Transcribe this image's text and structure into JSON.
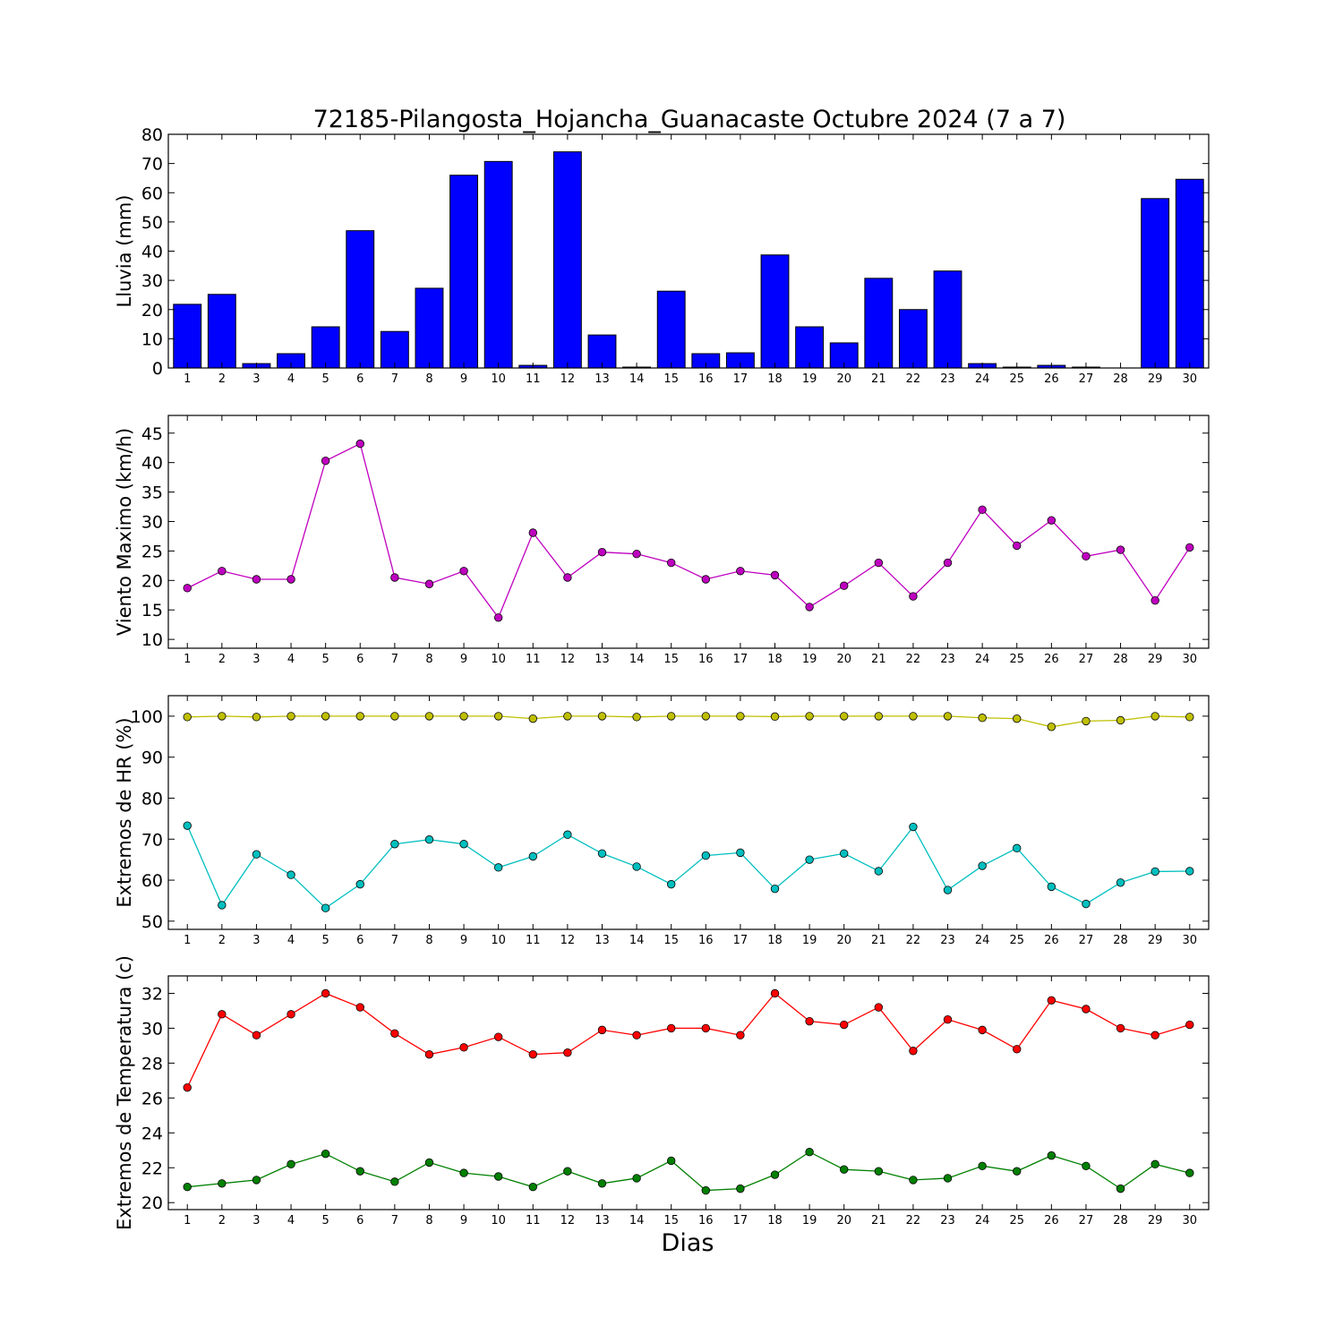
{
  "figure": {
    "title": "72185-Pilangosta_Hojancha_Guanacaste Octubre 2024  (7 a 7)",
    "xlabel": "Dias"
  },
  "chart_data": [
    {
      "type": "bar",
      "ylabel": "Lluvia (mm)",
      "categories": [
        "1",
        "2",
        "3",
        "4",
        "5",
        "6",
        "7",
        "8",
        "9",
        "10",
        "11",
        "12",
        "13",
        "14",
        "15",
        "16",
        "17",
        "18",
        "19",
        "20",
        "21",
        "22",
        "23",
        "24",
        "25",
        "26",
        "27",
        "28",
        "29",
        "30"
      ],
      "ylim": [
        0,
        80
      ],
      "yticks": [
        0,
        10,
        20,
        30,
        40,
        50,
        60,
        70,
        80
      ],
      "series": [
        {
          "color": "#0000ff",
          "values": [
            21.8,
            25.2,
            1.5,
            4.9,
            14.1,
            47.0,
            12.5,
            27.3,
            66.0,
            70.7,
            0.9,
            74.0,
            11.3,
            0.3,
            26.3,
            4.9,
            5.2,
            38.7,
            14.1,
            8.6,
            30.7,
            20.0,
            33.2,
            1.5,
            0.3,
            0.9,
            0.3,
            0.0,
            58.0,
            64.6
          ]
        }
      ]
    },
    {
      "type": "line",
      "ylabel": "Viento Maximo (km/h)",
      "categories": [
        "1",
        "2",
        "3",
        "4",
        "5",
        "6",
        "7",
        "8",
        "9",
        "10",
        "11",
        "12",
        "13",
        "14",
        "15",
        "16",
        "17",
        "18",
        "19",
        "20",
        "21",
        "22",
        "23",
        "24",
        "25",
        "26",
        "27",
        "28",
        "29",
        "30"
      ],
      "ylim": [
        8.5,
        48
      ],
      "yticks": [
        10,
        15,
        20,
        25,
        30,
        35,
        40,
        45
      ],
      "series": [
        {
          "color": "#bf00bf",
          "values": [
            18.7,
            21.6,
            20.2,
            20.2,
            40.3,
            43.2,
            20.5,
            19.4,
            21.6,
            13.7,
            28.1,
            20.5,
            24.8,
            24.5,
            23.0,
            20.2,
            21.6,
            20.9,
            15.5,
            19.1,
            23.0,
            17.3,
            23.0,
            32.0,
            25.9,
            30.2,
            24.1,
            25.2,
            16.6,
            25.6
          ]
        }
      ]
    },
    {
      "type": "line",
      "ylabel": "Extremos de HR (%)",
      "categories": [
        "1",
        "2",
        "3",
        "4",
        "5",
        "6",
        "7",
        "8",
        "9",
        "10",
        "11",
        "12",
        "13",
        "14",
        "15",
        "16",
        "17",
        "18",
        "19",
        "20",
        "21",
        "22",
        "23",
        "24",
        "25",
        "26",
        "27",
        "28",
        "29",
        "30"
      ],
      "ylim": [
        48,
        105
      ],
      "yticks": [
        50,
        60,
        70,
        80,
        90,
        100
      ],
      "series": [
        {
          "color": "#bfbf00",
          "values": [
            99.8,
            100,
            99.8,
            100,
            100,
            100,
            100,
            100,
            100,
            100,
            99.4,
            100,
            100,
            99.8,
            100,
            100,
            100,
            99.9,
            100,
            100,
            100,
            100,
            100,
            99.6,
            99.4,
            97.4,
            98.8,
            99.0,
            100,
            99.8
          ]
        },
        {
          "color": "#00bfbf",
          "values": [
            73.3,
            53.9,
            66.3,
            61.3,
            53.2,
            59.0,
            68.8,
            69.9,
            68.8,
            63.1,
            65.8,
            71.1,
            66.5,
            63.3,
            59.0,
            66.0,
            66.7,
            57.9,
            65.0,
            66.5,
            62.2,
            73.0,
            57.6,
            63.5,
            67.8,
            58.4,
            54.2,
            59.4,
            62.1,
            62.2
          ]
        }
      ]
    },
    {
      "type": "line",
      "ylabel": "Extremos de Temperatura (c)",
      "categories": [
        "1",
        "2",
        "3",
        "4",
        "5",
        "6",
        "7",
        "8",
        "9",
        "10",
        "11",
        "12",
        "13",
        "14",
        "15",
        "16",
        "17",
        "18",
        "19",
        "20",
        "21",
        "22",
        "23",
        "24",
        "25",
        "26",
        "27",
        "28",
        "29",
        "30"
      ],
      "ylim": [
        19.6,
        33
      ],
      "yticks": [
        20,
        22,
        24,
        26,
        28,
        30,
        32
      ],
      "series": [
        {
          "color": "#ff0000",
          "values": [
            26.6,
            30.8,
            29.6,
            30.8,
            32.0,
            31.2,
            29.7,
            28.5,
            28.9,
            29.5,
            28.5,
            28.6,
            29.9,
            29.6,
            30.0,
            30.0,
            29.6,
            32.0,
            30.4,
            30.2,
            31.2,
            28.7,
            30.5,
            29.9,
            28.8,
            31.6,
            31.1,
            30.0,
            29.6,
            30.2
          ]
        },
        {
          "color": "#008000",
          "values": [
            20.9,
            21.1,
            21.3,
            22.2,
            22.8,
            21.8,
            21.2,
            22.3,
            21.7,
            21.5,
            20.9,
            21.8,
            21.1,
            21.4,
            22.4,
            20.7,
            20.8,
            21.6,
            22.9,
            21.9,
            21.8,
            21.3,
            21.4,
            22.1,
            21.8,
            22.7,
            22.1,
            20.8,
            22.2,
            21.7
          ]
        }
      ]
    }
  ]
}
